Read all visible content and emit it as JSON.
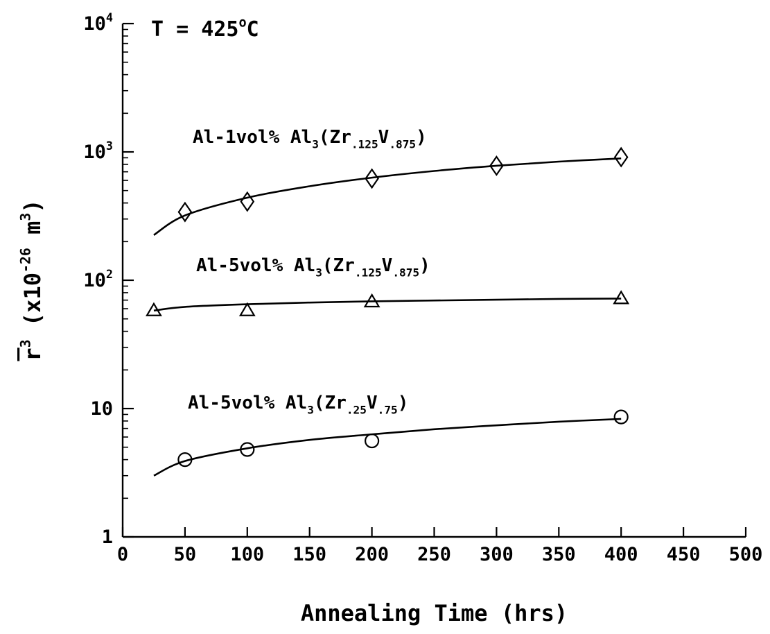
{
  "chart_data": {
    "type": "scatter",
    "title": "",
    "annotations": [
      {
        "id": "temp",
        "parts": [
          {
            "t": "T  =  425"
          },
          {
            "t": "o",
            "sup": true
          },
          {
            "t": "C"
          }
        ]
      }
    ],
    "xlabel": "Annealing Time (hrs)",
    "ylabel": {
      "parts": [
        {
          "t": "r",
          "overline": true
        },
        {
          "t": "3",
          "sup": true
        },
        {
          "t": " (x10"
        },
        {
          "t": "-26",
          "sup": true
        },
        {
          "t": " m"
        },
        {
          "t": "3",
          "sup": true
        },
        {
          "t": ")"
        }
      ]
    },
    "xlim": [
      0,
      500
    ],
    "ylim": [
      1,
      10000
    ],
    "yscale": "log",
    "x_ticks": [
      0,
      50,
      100,
      150,
      200,
      250,
      300,
      350,
      400,
      450,
      500
    ],
    "x_tick_labels": [
      "0",
      "50",
      "100",
      "150",
      "200",
      "250",
      "300",
      "350",
      "400",
      "450",
      "500"
    ],
    "y_ticks": [
      {
        "value": 1,
        "parts": [
          {
            "t": "1"
          }
        ]
      },
      {
        "value": 10,
        "parts": [
          {
            "t": "10"
          }
        ]
      },
      {
        "value": 100,
        "parts": [
          {
            "t": "10"
          },
          {
            "t": "2",
            "sup": true
          }
        ]
      },
      {
        "value": 1000,
        "parts": [
          {
            "t": "10"
          },
          {
            "t": "3",
            "sup": true
          }
        ]
      },
      {
        "value": 10000,
        "parts": [
          {
            "t": "10"
          },
          {
            "t": "4",
            "sup": true
          }
        ]
      }
    ],
    "grid": false,
    "legend": "none",
    "series": [
      {
        "name": "Al-1vol% Al3(Zr.125V.875)",
        "label_parts": [
          {
            "t": "Al-1vol% Al"
          },
          {
            "t": "3",
            "sub": true
          },
          {
            "t": "(Zr"
          },
          {
            "t": ".125",
            "sub": true
          },
          {
            "t": "V"
          },
          {
            "t": ".875",
            "sub": true
          },
          {
            "t": ")"
          }
        ],
        "marker": "diamond",
        "x": [
          50,
          100,
          200,
          300,
          400
        ],
        "y": [
          340,
          410,
          620,
          780,
          910
        ],
        "fit": {
          "x": [
            25,
            50,
            100,
            150,
            200,
            250,
            300,
            350,
            400
          ],
          "y": [
            225,
            320,
            440,
            540,
            630,
            710,
            780,
            840,
            890
          ]
        }
      },
      {
        "name": "Al-5vol% Al3(Zr.125V.875)",
        "label_parts": [
          {
            "t": "Al-5vol% Al"
          },
          {
            "t": "3",
            "sub": true
          },
          {
            "t": "(Zr"
          },
          {
            "t": ".125",
            "sub": true
          },
          {
            "t": "V"
          },
          {
            "t": ".875",
            "sub": true
          },
          {
            "t": ")"
          }
        ],
        "marker": "triangle",
        "x": [
          25,
          100,
          200,
          400
        ],
        "y": [
          58,
          58,
          68,
          72
        ],
        "fit": {
          "x": [
            25,
            50,
            100,
            150,
            200,
            250,
            300,
            350,
            400
          ],
          "y": [
            58,
            62,
            65,
            67,
            68.5,
            69.5,
            70.5,
            71.5,
            72
          ]
        }
      },
      {
        "name": "Al-5vol% Al3(Zr.25V.75)",
        "label_parts": [
          {
            "t": "Al-5vol% Al"
          },
          {
            "t": "3",
            "sub": true
          },
          {
            "t": "(Zr"
          },
          {
            "t": ".25",
            "sub": true
          },
          {
            "t": "V"
          },
          {
            "t": ".75",
            "sub": true
          },
          {
            "t": ")"
          }
        ],
        "marker": "circle",
        "x": [
          50,
          100,
          200,
          400
        ],
        "y": [
          4.0,
          4.8,
          5.6,
          8.6
        ],
        "fit": {
          "x": [
            25,
            50,
            100,
            150,
            200,
            250,
            300,
            350,
            400
          ],
          "y": [
            3.0,
            3.9,
            4.9,
            5.7,
            6.3,
            6.9,
            7.4,
            7.9,
            8.3
          ]
        }
      }
    ]
  }
}
